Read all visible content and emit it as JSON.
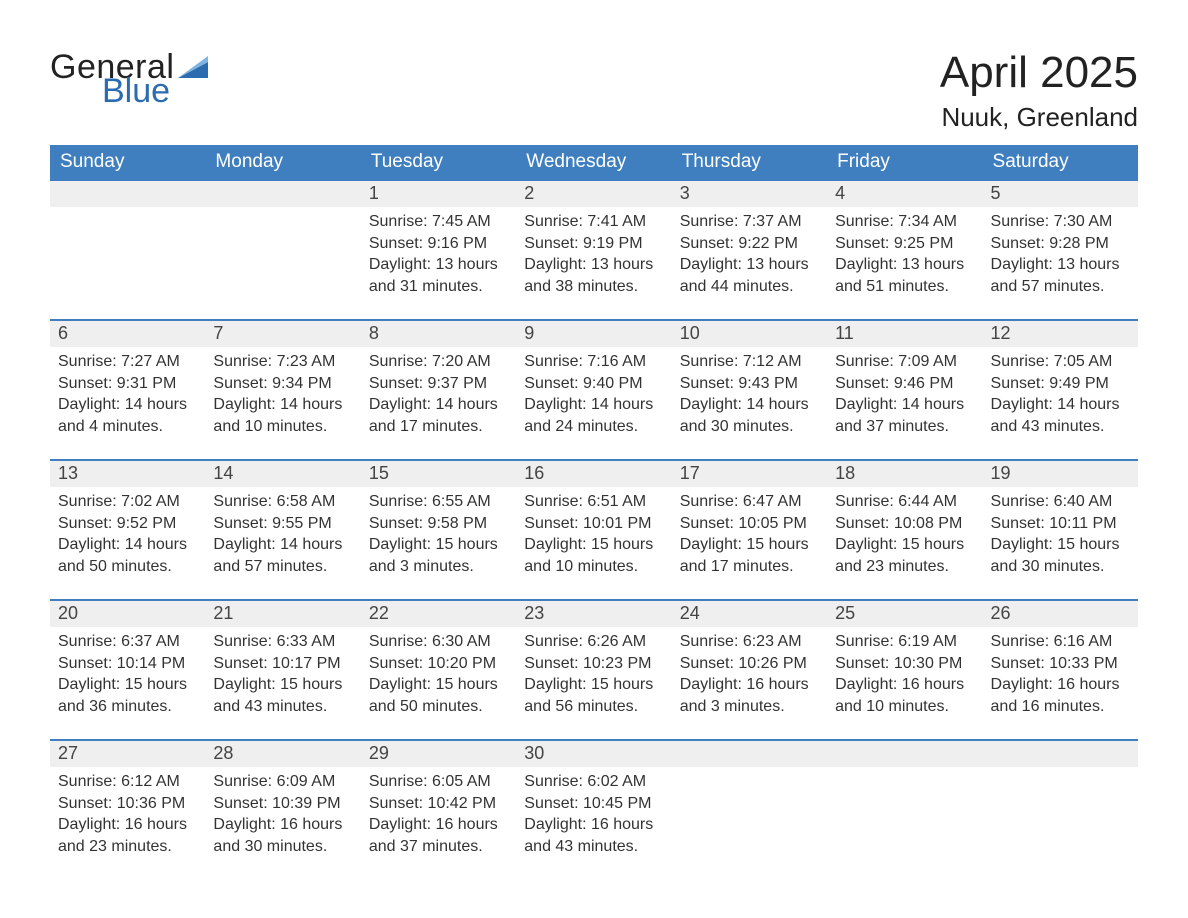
{
  "logo": {
    "word1": "General",
    "word2": "Blue"
  },
  "title": "April 2025",
  "location": "Nuuk, Greenland",
  "colors": {
    "header_bg": "#3f7fbf",
    "header_text": "#ffffff",
    "daynum_bg": "#efefef",
    "row_border": "#3f7fbf",
    "logo_blue": "#2b6cb0",
    "logo_flag_dark": "#2b6cb0",
    "logo_flag_light": "#7fb3e0"
  },
  "weekdays": [
    "Sunday",
    "Monday",
    "Tuesday",
    "Wednesday",
    "Thursday",
    "Friday",
    "Saturday"
  ],
  "weeks": [
    [
      null,
      null,
      {
        "n": "1",
        "sunrise": "7:45 AM",
        "sunset": "9:16 PM",
        "daylight": "13 hours and 31 minutes."
      },
      {
        "n": "2",
        "sunrise": "7:41 AM",
        "sunset": "9:19 PM",
        "daylight": "13 hours and 38 minutes."
      },
      {
        "n": "3",
        "sunrise": "7:37 AM",
        "sunset": "9:22 PM",
        "daylight": "13 hours and 44 minutes."
      },
      {
        "n": "4",
        "sunrise": "7:34 AM",
        "sunset": "9:25 PM",
        "daylight": "13 hours and 51 minutes."
      },
      {
        "n": "5",
        "sunrise": "7:30 AM",
        "sunset": "9:28 PM",
        "daylight": "13 hours and 57 minutes."
      }
    ],
    [
      {
        "n": "6",
        "sunrise": "7:27 AM",
        "sunset": "9:31 PM",
        "daylight": "14 hours and 4 minutes."
      },
      {
        "n": "7",
        "sunrise": "7:23 AM",
        "sunset": "9:34 PM",
        "daylight": "14 hours and 10 minutes."
      },
      {
        "n": "8",
        "sunrise": "7:20 AM",
        "sunset": "9:37 PM",
        "daylight": "14 hours and 17 minutes."
      },
      {
        "n": "9",
        "sunrise": "7:16 AM",
        "sunset": "9:40 PM",
        "daylight": "14 hours and 24 minutes."
      },
      {
        "n": "10",
        "sunrise": "7:12 AM",
        "sunset": "9:43 PM",
        "daylight": "14 hours and 30 minutes."
      },
      {
        "n": "11",
        "sunrise": "7:09 AM",
        "sunset": "9:46 PM",
        "daylight": "14 hours and 37 minutes."
      },
      {
        "n": "12",
        "sunrise": "7:05 AM",
        "sunset": "9:49 PM",
        "daylight": "14 hours and 43 minutes."
      }
    ],
    [
      {
        "n": "13",
        "sunrise": "7:02 AM",
        "sunset": "9:52 PM",
        "daylight": "14 hours and 50 minutes."
      },
      {
        "n": "14",
        "sunrise": "6:58 AM",
        "sunset": "9:55 PM",
        "daylight": "14 hours and 57 minutes."
      },
      {
        "n": "15",
        "sunrise": "6:55 AM",
        "sunset": "9:58 PM",
        "daylight": "15 hours and 3 minutes."
      },
      {
        "n": "16",
        "sunrise": "6:51 AM",
        "sunset": "10:01 PM",
        "daylight": "15 hours and 10 minutes."
      },
      {
        "n": "17",
        "sunrise": "6:47 AM",
        "sunset": "10:05 PM",
        "daylight": "15 hours and 17 minutes."
      },
      {
        "n": "18",
        "sunrise": "6:44 AM",
        "sunset": "10:08 PM",
        "daylight": "15 hours and 23 minutes."
      },
      {
        "n": "19",
        "sunrise": "6:40 AM",
        "sunset": "10:11 PM",
        "daylight": "15 hours and 30 minutes."
      }
    ],
    [
      {
        "n": "20",
        "sunrise": "6:37 AM",
        "sunset": "10:14 PM",
        "daylight": "15 hours and 36 minutes."
      },
      {
        "n": "21",
        "sunrise": "6:33 AM",
        "sunset": "10:17 PM",
        "daylight": "15 hours and 43 minutes."
      },
      {
        "n": "22",
        "sunrise": "6:30 AM",
        "sunset": "10:20 PM",
        "daylight": "15 hours and 50 minutes."
      },
      {
        "n": "23",
        "sunrise": "6:26 AM",
        "sunset": "10:23 PM",
        "daylight": "15 hours and 56 minutes."
      },
      {
        "n": "24",
        "sunrise": "6:23 AM",
        "sunset": "10:26 PM",
        "daylight": "16 hours and 3 minutes."
      },
      {
        "n": "25",
        "sunrise": "6:19 AM",
        "sunset": "10:30 PM",
        "daylight": "16 hours and 10 minutes."
      },
      {
        "n": "26",
        "sunrise": "6:16 AM",
        "sunset": "10:33 PM",
        "daylight": "16 hours and 16 minutes."
      }
    ],
    [
      {
        "n": "27",
        "sunrise": "6:12 AM",
        "sunset": "10:36 PM",
        "daylight": "16 hours and 23 minutes."
      },
      {
        "n": "28",
        "sunrise": "6:09 AM",
        "sunset": "10:39 PM",
        "daylight": "16 hours and 30 minutes."
      },
      {
        "n": "29",
        "sunrise": "6:05 AM",
        "sunset": "10:42 PM",
        "daylight": "16 hours and 37 minutes."
      },
      {
        "n": "30",
        "sunrise": "6:02 AM",
        "sunset": "10:45 PM",
        "daylight": "16 hours and 43 minutes."
      },
      null,
      null,
      null
    ]
  ],
  "labels": {
    "sunrise_prefix": "Sunrise: ",
    "sunset_prefix": "Sunset: ",
    "daylight_prefix": "Daylight: "
  }
}
